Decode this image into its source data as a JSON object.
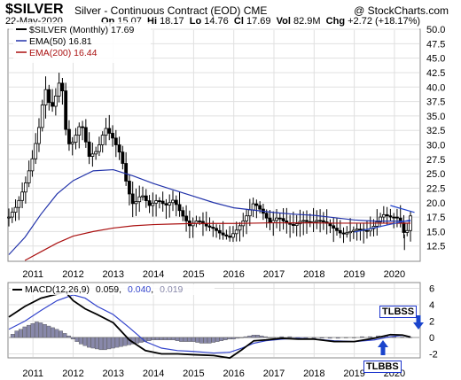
{
  "header": {
    "symbol": "$SILVER",
    "description": "Silver - Continuous Contract (EOD)",
    "exchange": "CME",
    "brand": "@ StockCharts.com",
    "date": "22-May-2020",
    "open": "15.07",
    "high": "18.17",
    "low": "14.76",
    "close": "17.69",
    "volume": "82.9M",
    "change": "+2.72 (+18.17%)"
  },
  "legend": {
    "series": "$SILVER (Monthly) 17.69",
    "ema50": "EMA(50) 16.81",
    "ema200": "EMA(200) 16.44"
  },
  "macd_legend": {
    "label": "MACD(12,26,9)",
    "macd": "0.059",
    "signal": "0.040",
    "hist": "0.019"
  },
  "annotations": {
    "tlbss": "TLBSS",
    "tlbbs": "TLBBS"
  },
  "colors": {
    "candle": "#000000",
    "ema50": "#2233aa",
    "ema200": "#aa1111",
    "macd_signal": "#3344cc",
    "histogram": "#8888aa",
    "arrow": "#1a44cc",
    "grid": "#e0e0e0"
  },
  "chart_data": [
    {
      "type": "candlestick",
      "title": "$SILVER Silver - Continuous Contract (EOD)",
      "x": [
        "2011",
        "2012",
        "2013",
        "2014",
        "2015",
        "2016",
        "2017",
        "2018",
        "2019",
        "2020"
      ],
      "ylim": [
        10,
        50
      ],
      "yticks": [
        "12.5",
        "15.0",
        "17.5",
        "20.0",
        "22.5",
        "25.0",
        "27.5",
        "30.0",
        "32.5",
        "35.0",
        "37.5",
        "40.0",
        "42.5",
        "45.0",
        "47.5",
        "50.0"
      ],
      "close_path": [
        [
          2010.4,
          17.5
        ],
        [
          2010.6,
          19.5
        ],
        [
          2010.8,
          23.0
        ],
        [
          2011.0,
          28.0
        ],
        [
          2011.15,
          33.0
        ],
        [
          2011.3,
          40.0
        ],
        [
          2011.45,
          36.0
        ],
        [
          2011.55,
          38.0
        ],
        [
          2011.7,
          42.0
        ],
        [
          2011.85,
          30.0
        ],
        [
          2012.0,
          30.5
        ],
        [
          2012.2,
          34.0
        ],
        [
          2012.4,
          28.0
        ],
        [
          2012.6,
          29.0
        ],
        [
          2012.8,
          33.0
        ],
        [
          2013.0,
          31.0
        ],
        [
          2013.2,
          28.0
        ],
        [
          2013.35,
          22.5
        ],
        [
          2013.5,
          19.5
        ],
        [
          2013.7,
          21.5
        ],
        [
          2013.9,
          19.5
        ],
        [
          2014.1,
          20.5
        ],
        [
          2014.3,
          19.5
        ],
        [
          2014.5,
          20.5
        ],
        [
          2014.7,
          18.0
        ],
        [
          2014.9,
          16.0
        ],
        [
          2015.1,
          17.0
        ],
        [
          2015.3,
          16.0
        ],
        [
          2015.5,
          15.5
        ],
        [
          2015.7,
          14.5
        ],
        [
          2015.9,
          14.0
        ],
        [
          2016.1,
          15.5
        ],
        [
          2016.3,
          17.5
        ],
        [
          2016.5,
          20.0
        ],
        [
          2016.7,
          18.5
        ],
        [
          2016.9,
          16.5
        ],
        [
          2017.1,
          17.5
        ],
        [
          2017.3,
          16.5
        ],
        [
          2017.5,
          16.0
        ],
        [
          2017.7,
          17.0
        ],
        [
          2017.9,
          16.5
        ],
        [
          2018.1,
          17.0
        ],
        [
          2018.3,
          16.5
        ],
        [
          2018.5,
          15.5
        ],
        [
          2018.7,
          14.5
        ],
        [
          2018.9,
          15.0
        ],
        [
          2019.1,
          15.5
        ],
        [
          2019.3,
          15.0
        ],
        [
          2019.5,
          16.0
        ],
        [
          2019.7,
          18.0
        ],
        [
          2019.9,
          17.5
        ],
        [
          2020.05,
          17.5
        ],
        [
          2020.15,
          16.5
        ],
        [
          2020.25,
          14.5
        ],
        [
          2020.35,
          15.5
        ],
        [
          2020.4,
          17.7
        ]
      ],
      "series": [
        {
          "name": "EMA(50)",
          "values": [
            [
              2010.4,
              11.0
            ],
            [
              2010.8,
              14.0
            ],
            [
              2011.2,
              18.0
            ],
            [
              2011.6,
              21.5
            ],
            [
              2012.0,
              23.8
            ],
            [
              2012.5,
              25.5
            ],
            [
              2013.0,
              25.7
            ],
            [
              2013.5,
              24.6
            ],
            [
              2014.0,
              23.3
            ],
            [
              2014.5,
              22.2
            ],
            [
              2015.0,
              21.1
            ],
            [
              2015.5,
              20.0
            ],
            [
              2016.0,
              19.1
            ],
            [
              2016.5,
              18.7
            ],
            [
              2017.0,
              18.3
            ],
            [
              2017.5,
              18.0
            ],
            [
              2018.0,
              17.8
            ],
            [
              2018.5,
              17.4
            ],
            [
              2019.0,
              17.0
            ],
            [
              2019.5,
              16.8
            ],
            [
              2020.0,
              16.8
            ],
            [
              2020.4,
              16.8
            ]
          ]
        },
        {
          "name": "EMA(200)",
          "values": [
            [
              2010.8,
              10.0
            ],
            [
              2011.2,
              11.5
            ],
            [
              2011.6,
              13.0
            ],
            [
              2012.0,
              14.2
            ],
            [
              2012.5,
              15.0
            ],
            [
              2013.0,
              15.6
            ],
            [
              2013.5,
              16.0
            ],
            [
              2014.0,
              16.2
            ],
            [
              2014.5,
              16.3
            ],
            [
              2015.0,
              16.4
            ],
            [
              2015.5,
              16.4
            ],
            [
              2016.0,
              16.4
            ],
            [
              2016.5,
              16.45
            ],
            [
              2017.0,
              16.5
            ],
            [
              2017.5,
              16.5
            ],
            [
              2018.0,
              16.5
            ],
            [
              2018.5,
              16.45
            ],
            [
              2019.0,
              16.45
            ],
            [
              2019.5,
              16.45
            ],
            [
              2020.0,
              16.44
            ],
            [
              2020.4,
              16.44
            ]
          ]
        }
      ],
      "trendlines": [
        [
          [
            2019.0,
            14.9
          ],
          [
            2020.4,
            17.0
          ]
        ],
        [
          [
            2019.9,
            19.5
          ],
          [
            2020.5,
            18.3
          ]
        ]
      ]
    },
    {
      "type": "line",
      "title": "MACD(12,26,9)",
      "ylim": [
        -3,
        6.5
      ],
      "yticks": [
        "6",
        "4",
        "2",
        "0",
        "-2"
      ],
      "series": [
        {
          "name": "MACD",
          "values": [
            [
              2010.4,
              2.5
            ],
            [
              2010.8,
              3.8
            ],
            [
              2011.2,
              4.8
            ],
            [
              2011.6,
              5.3
            ],
            [
              2011.8,
              5.6
            ],
            [
              2012.0,
              4.5
            ],
            [
              2012.3,
              3.5
            ],
            [
              2012.6,
              2.8
            ],
            [
              2013.0,
              1.8
            ],
            [
              2013.4,
              -0.3
            ],
            [
              2013.8,
              -1.6
            ],
            [
              2014.2,
              -2.0
            ],
            [
              2014.6,
              -2.0
            ],
            [
              2015.0,
              -2.1
            ],
            [
              2015.5,
              -2.2
            ],
            [
              2015.9,
              -2.5
            ],
            [
              2016.2,
              -1.5
            ],
            [
              2016.5,
              -0.4
            ],
            [
              2016.8,
              -0.3
            ],
            [
              2017.2,
              -0.1
            ],
            [
              2017.6,
              -0.2
            ],
            [
              2018.0,
              -0.2
            ],
            [
              2018.5,
              -0.5
            ],
            [
              2019.0,
              -0.5
            ],
            [
              2019.5,
              -0.1
            ],
            [
              2019.9,
              0.35
            ],
            [
              2020.2,
              0.3
            ],
            [
              2020.4,
              0.06
            ]
          ]
        },
        {
          "name": "Signal",
          "values": [
            [
              2010.4,
              1.0
            ],
            [
              2010.8,
              2.0
            ],
            [
              2011.2,
              3.3
            ],
            [
              2011.6,
              4.5
            ],
            [
              2012.0,
              5.2
            ],
            [
              2012.3,
              4.8
            ],
            [
              2012.6,
              3.8
            ],
            [
              2013.0,
              2.8
            ],
            [
              2013.4,
              1.2
            ],
            [
              2013.8,
              -0.5
            ],
            [
              2014.2,
              -1.3
            ],
            [
              2014.6,
              -1.6
            ],
            [
              2015.0,
              -1.7
            ],
            [
              2015.5,
              -1.9
            ],
            [
              2015.9,
              -1.8
            ],
            [
              2016.2,
              -1.3
            ],
            [
              2016.5,
              -0.7
            ],
            [
              2016.8,
              -0.4
            ],
            [
              2017.2,
              -0.2
            ],
            [
              2017.6,
              -0.1
            ],
            [
              2018.0,
              -0.2
            ],
            [
              2018.5,
              -0.4
            ],
            [
              2019.0,
              -0.5
            ],
            [
              2019.5,
              -0.3
            ],
            [
              2019.9,
              0.1
            ],
            [
              2020.2,
              0.25
            ],
            [
              2020.4,
              0.04
            ]
          ]
        }
      ],
      "histogram_x": [
        2010.5,
        2010.6,
        2010.7,
        2010.8,
        2010.9,
        2011.0,
        2011.1,
        2011.2,
        2011.3,
        2011.4,
        2011.5,
        2011.6,
        2011.7,
        2011.8,
        2011.9,
        2012.0,
        2012.1,
        2012.2,
        2012.3,
        2012.4,
        2012.5,
        2012.6,
        2012.7,
        2012.8,
        2012.9,
        2013.0,
        2013.1,
        2013.2,
        2013.3,
        2013.4,
        2013.5,
        2013.6,
        2013.7,
        2013.8,
        2013.9,
        2014.0,
        2014.1,
        2014.2,
        2014.3,
        2014.4,
        2014.5,
        2014.6,
        2014.7,
        2014.8,
        2014.9,
        2015.0,
        2015.1,
        2015.2,
        2015.3,
        2015.4,
        2015.5,
        2015.6,
        2015.7,
        2015.8,
        2015.9,
        2016.0,
        2016.1,
        2016.2,
        2016.3,
        2016.4,
        2016.5,
        2016.6,
        2016.7,
        2016.8,
        2016.9,
        2017.0,
        2017.2,
        2017.4,
        2017.6,
        2017.8,
        2018.0,
        2018.2,
        2018.4,
        2018.6,
        2018.8,
        2019.0,
        2019.2,
        2019.4,
        2019.6,
        2019.8,
        2020.0,
        2020.2,
        2020.4
      ],
      "histogram": [
        0.4,
        0.8,
        1.0,
        1.3,
        1.5,
        1.7,
        1.9,
        1.8,
        1.6,
        1.4,
        1.2,
        1.0,
        0.8,
        0.5,
        0.2,
        -0.2,
        -0.5,
        -0.8,
        -1.0,
        -1.2,
        -1.3,
        -1.4,
        -1.5,
        -1.5,
        -1.4,
        -1.3,
        -1.2,
        -1.1,
        -1.0,
        -0.9,
        -0.8,
        -0.7,
        -0.6,
        -0.5,
        -0.4,
        -0.3,
        -0.3,
        -0.3,
        -0.3,
        -0.3,
        -0.3,
        -0.4,
        -0.5,
        -0.5,
        -0.5,
        -0.5,
        -0.6,
        -0.7,
        -0.7,
        -0.7,
        -0.6,
        -0.5,
        -0.4,
        -0.3,
        -0.2,
        -0.2,
        -0.1,
        0.0,
        0.1,
        0.2,
        0.3,
        0.3,
        0.2,
        0.1,
        0.0,
        0.0,
        0.1,
        0.1,
        0.0,
        -0.1,
        -0.1,
        -0.1,
        -0.1,
        -0.1,
        0.0,
        0.0,
        0.1,
        0.1,
        0.2,
        0.2,
        0.1,
        0.05,
        0.02
      ]
    }
  ]
}
